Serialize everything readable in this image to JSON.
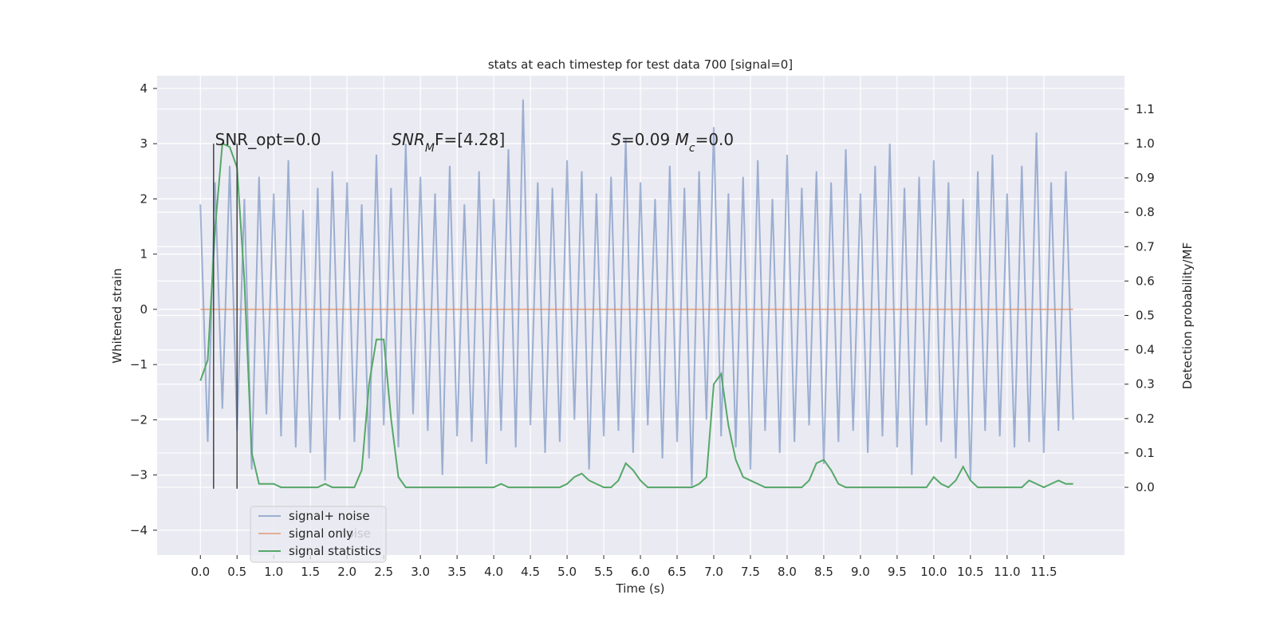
{
  "chart_data": {
    "type": "line",
    "title": "stats at each timestep for test data 700 [signal=0]",
    "xlabel": "Time (s)",
    "ylabel": "Whitened strain",
    "y2label": "Detection probability/MF",
    "xlim": [
      -0.59,
      12.6
    ],
    "ylim": [
      -4.45,
      4.23
    ],
    "y2lim": [
      -0.197,
      1.197
    ],
    "xticks": [
      {
        "value": 0,
        "label": "0.0"
      },
      0.5,
      {
        "value": 1,
        "label": "1.0"
      },
      1.5,
      {
        "value": 2,
        "label": "2.0"
      },
      2.5,
      {
        "value": 3,
        "label": "3.0"
      },
      3.5,
      {
        "value": 4,
        "label": "4.0"
      },
      4.5,
      {
        "value": 5,
        "label": "5.0"
      },
      5.5,
      {
        "value": 6,
        "label": "6.0"
      },
      6.5,
      {
        "value": 7,
        "label": "7.0"
      },
      7.5,
      {
        "value": 8,
        "label": "8.0"
      },
      8.5,
      {
        "value": 9,
        "label": "9.0"
      },
      9.5,
      {
        "value": 10,
        "label": "10.0"
      },
      10.5,
      {
        "value": 11,
        "label": "11.0"
      },
      11.5
    ],
    "yticks": [
      {
        "value": -4,
        "label": "−4"
      },
      {
        "value": -3,
        "label": "−3"
      },
      {
        "value": -2,
        "label": "−2"
      },
      {
        "value": -1,
        "label": "−1"
      },
      0,
      1,
      2,
      3,
      4
    ],
    "y2ticks": [
      {
        "value": 0,
        "label": "0.0"
      },
      0.1,
      0.2,
      0.3,
      0.4,
      0.5,
      0.6,
      0.7,
      0.8,
      0.9,
      {
        "value": 1,
        "label": "1.0"
      },
      1.1
    ],
    "grid": true,
    "legend": "lower left",
    "x": [
      0.0,
      0.1,
      0.2,
      0.3,
      0.4,
      0.5,
      0.6,
      0.7,
      0.8,
      0.9,
      1.0,
      1.1,
      1.2,
      1.3,
      1.4,
      1.5,
      1.6,
      1.7,
      1.8,
      1.9,
      2.0,
      2.1,
      2.2,
      2.3,
      2.4,
      2.5,
      2.6,
      2.7,
      2.8,
      2.9,
      3.0,
      3.1,
      3.2,
      3.3,
      3.4,
      3.5,
      3.6,
      3.7,
      3.8,
      3.9,
      4.0,
      4.1,
      4.2,
      4.3,
      4.4,
      4.5,
      4.6,
      4.7,
      4.8,
      4.9,
      5.0,
      5.1,
      5.2,
      5.3,
      5.4,
      5.5,
      5.6,
      5.7,
      5.8,
      5.9,
      6.0,
      6.1,
      6.2,
      6.3,
      6.4,
      6.5,
      6.6,
      6.7,
      6.8,
      6.9,
      7.0,
      7.1,
      7.2,
      7.3,
      7.4,
      7.5,
      7.6,
      7.7,
      7.8,
      7.9,
      8.0,
      8.1,
      8.2,
      8.3,
      8.4,
      8.5,
      8.6,
      8.7,
      8.8,
      8.9,
      9.0,
      9.1,
      9.2,
      9.3,
      9.4,
      9.5,
      9.6,
      9.7,
      9.8,
      9.9,
      10.0,
      10.1,
      10.2,
      10.3,
      10.4,
      10.5,
      10.6,
      10.7,
      10.8,
      10.9,
      11.0,
      11.1,
      11.2,
      11.3,
      11.4,
      11.5,
      11.6,
      11.7,
      11.8,
      11.9
    ],
    "series": [
      {
        "name": "signal+ noise",
        "color": "#4c72b0",
        "opacity": 0.5,
        "axis": "y",
        "values": [
          1.9,
          -2.4,
          2.3,
          -1.8,
          2.6,
          -2.2,
          2.0,
          -2.9,
          2.4,
          -1.9,
          2.1,
          -2.3,
          2.7,
          -2.5,
          1.8,
          -2.6,
          2.2,
          -3.1,
          2.5,
          -2.0,
          2.3,
          -2.4,
          1.9,
          -2.7,
          2.8,
          -2.1,
          2.2,
          -2.5,
          3.0,
          -1.9,
          2.4,
          -2.2,
          2.1,
          -3.0,
          2.6,
          -2.3,
          1.9,
          -2.4,
          2.5,
          -2.8,
          2.0,
          -2.2,
          2.9,
          -2.5,
          3.8,
          -2.1,
          2.3,
          -2.6,
          2.2,
          -2.4,
          2.7,
          -2.0,
          2.5,
          -2.9,
          2.1,
          -2.3,
          2.4,
          -2.2,
          3.1,
          -2.6,
          2.3,
          -2.1,
          2.0,
          -2.7,
          2.6,
          -2.4,
          2.2,
          -3.2,
          2.5,
          -2.0,
          3.3,
          -2.3,
          2.1,
          -2.5,
          2.4,
          -2.9,
          2.7,
          -2.2,
          2.0,
          -2.6,
          2.8,
          -2.4,
          2.2,
          -2.1,
          2.5,
          -2.8,
          2.3,
          -2.4,
          2.9,
          -2.2,
          2.1,
          -2.6,
          2.6,
          -2.3,
          3.0,
          -2.5,
          2.2,
          -3.0,
          2.4,
          -2.1,
          2.7,
          -2.4,
          2.3,
          -2.7,
          2.0,
          -3.1,
          2.5,
          -2.2,
          2.8,
          -2.3,
          2.1,
          -2.5,
          2.6,
          -2.4,
          3.2,
          -2.6,
          2.3,
          -2.2,
          2.5,
          -2.0
        ]
      },
      {
        "name": "signal only",
        "color": "#dd8452",
        "opacity": 0.6,
        "axis": "y",
        "values": [
          0,
          0,
          0,
          0,
          0,
          0,
          0,
          0,
          0,
          0,
          0,
          0,
          0,
          0,
          0,
          0,
          0,
          0,
          0,
          0,
          0,
          0,
          0,
          0,
          0,
          0,
          0,
          0,
          0,
          0,
          0,
          0,
          0,
          0,
          0,
          0,
          0,
          0,
          0,
          0,
          0,
          0,
          0,
          0,
          0,
          0,
          0,
          0,
          0,
          0,
          0,
          0,
          0,
          0,
          0,
          0,
          0,
          0,
          0,
          0,
          0,
          0,
          0,
          0,
          0,
          0,
          0,
          0,
          0,
          0,
          0,
          0,
          0,
          0,
          0,
          0,
          0,
          0,
          0,
          0,
          0,
          0,
          0,
          0,
          0,
          0,
          0,
          0,
          0,
          0,
          0,
          0,
          0,
          0,
          0,
          0,
          0,
          0,
          0,
          0,
          0,
          0,
          0,
          0,
          0,
          0,
          0,
          0,
          0,
          0,
          0,
          0,
          0,
          0,
          0,
          0,
          0,
          0,
          0,
          0
        ]
      },
      {
        "name": "signal statistics",
        "color": "#55a868",
        "opacity": 1,
        "axis": "y2",
        "values": [
          0.31,
          0.37,
          0.75,
          1.0,
          0.99,
          0.93,
          0.6,
          0.1,
          0.01,
          0.01,
          0.01,
          0,
          0,
          0,
          0,
          0,
          0,
          0.01,
          0,
          0,
          0,
          0,
          0.05,
          0.3,
          0.43,
          0.43,
          0.2,
          0.03,
          0,
          0,
          0,
          0,
          0,
          0,
          0,
          0,
          0,
          0,
          0,
          0,
          0,
          0.01,
          0,
          0,
          0,
          0,
          0,
          0,
          0,
          0,
          0.01,
          0.03,
          0.04,
          0.02,
          0.01,
          0,
          0,
          0.02,
          0.07,
          0.05,
          0.02,
          0,
          0,
          0,
          0,
          0,
          0,
          0,
          0.01,
          0.03,
          0.3,
          0.33,
          0.18,
          0.08,
          0.03,
          0.02,
          0.01,
          0,
          0,
          0,
          0,
          0,
          0,
          0.02,
          0.07,
          0.08,
          0.05,
          0.01,
          0,
          0,
          0,
          0,
          0,
          0,
          0,
          0,
          0,
          0,
          0,
          0,
          0.03,
          0.01,
          0,
          0.02,
          0.06,
          0.02,
          0,
          0,
          0,
          0,
          0,
          0,
          0,
          0.02,
          0.01,
          0,
          0.01,
          0.02,
          0.01,
          0.01
        ]
      }
    ],
    "vlines": [
      {
        "x": 0.18,
        "ymin": -3.25,
        "ymax": 3.0,
        "color": "#444444"
      },
      {
        "x": 0.5,
        "ymin": -3.25,
        "ymax": 3.0,
        "color": "#444444"
      }
    ],
    "annotations": [
      {
        "x": 0.2,
        "y": 2.97,
        "segments": [
          {
            "text": "SNR_opt=0.0",
            "italic": false,
            "sub": false
          }
        ]
      },
      {
        "x": 2.61,
        "y": 2.97,
        "segments": [
          {
            "text": "SNR",
            "italic": true,
            "sub": false
          },
          {
            "text": "M",
            "italic": true,
            "sub": true
          },
          {
            "text": "F=[4.28]",
            "italic": false,
            "sub": false
          }
        ]
      },
      {
        "x": 5.6,
        "y": 2.97,
        "segments": [
          {
            "text": "S",
            "italic": true,
            "sub": false
          },
          {
            "text": "=0.09   ",
            "italic": false,
            "sub": false
          },
          {
            "text": "M",
            "italic": true,
            "sub": false
          },
          {
            "text": "c",
            "italic": true,
            "sub": true
          },
          {
            "text": "=0.0",
            "italic": false,
            "sub": false
          }
        ]
      }
    ],
    "legend_hidden_text": "noise"
  }
}
